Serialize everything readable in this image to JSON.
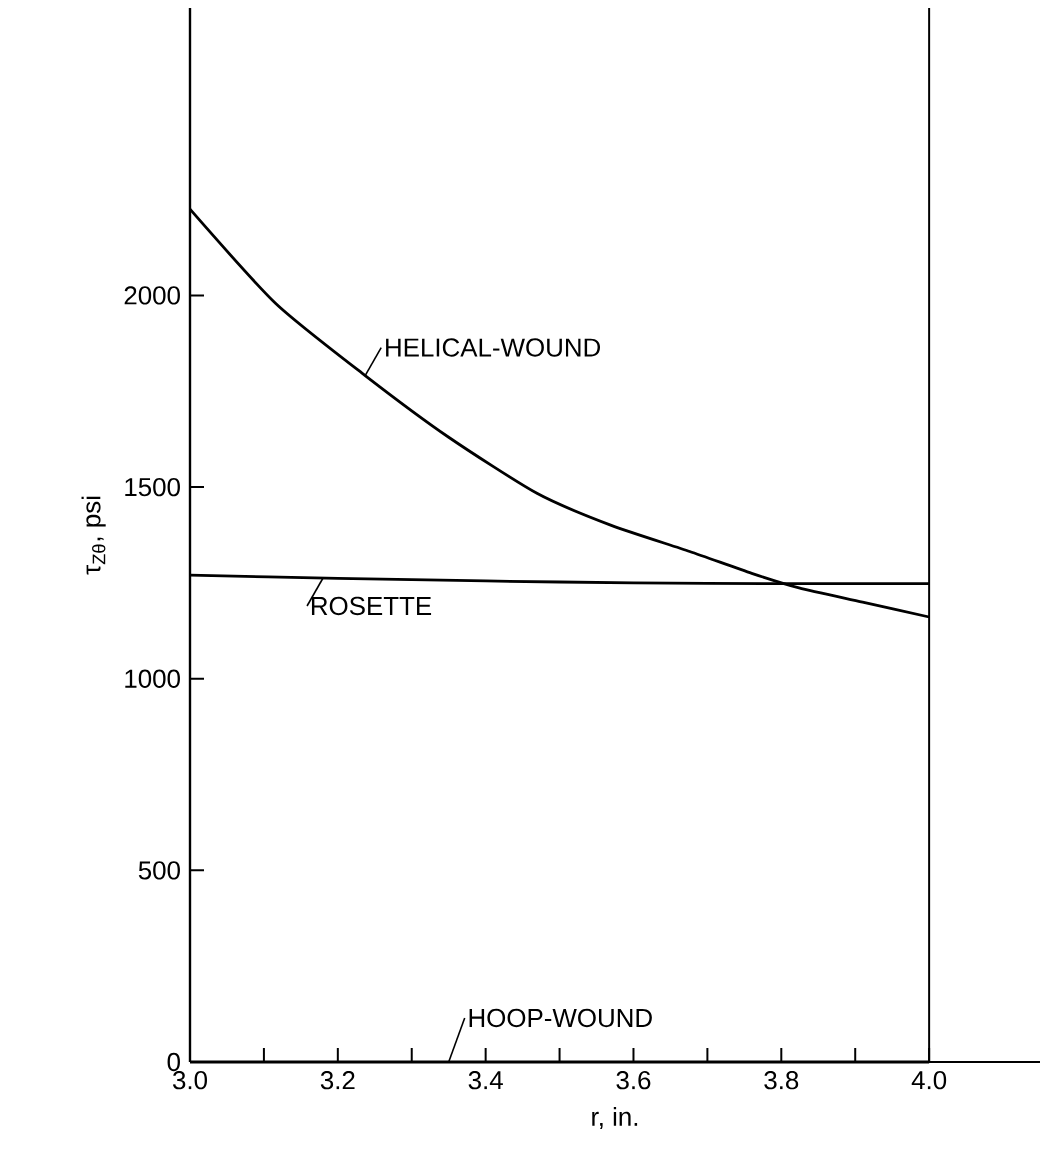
{
  "chart_data": {
    "type": "line",
    "xlabel": "r, in.",
    "ylabel": "τ$_{Zθ}$, psi",
    "xlim": [
      3.0,
      4.15
    ],
    "ylim": [
      0,
      2750
    ],
    "xticks": [
      {
        "value": 3.0,
        "label": "3.0"
      },
      {
        "value": 3.1,
        "label": null
      },
      {
        "value": 3.2,
        "label": "3.2"
      },
      {
        "value": 3.3,
        "label": null
      },
      {
        "value": 3.4,
        "label": "3.4"
      },
      {
        "value": 3.5,
        "label": null
      },
      {
        "value": 3.6,
        "label": "3.6"
      },
      {
        "value": 3.7,
        "label": null
      },
      {
        "value": 3.8,
        "label": "3.8"
      },
      {
        "value": 3.9,
        "label": null
      },
      {
        "value": 4.0,
        "label": "4.0"
      }
    ],
    "yticks": [
      0,
      500,
      1000,
      1500,
      2000
    ],
    "ref_lines": [
      {
        "axis": "x",
        "value": 4.0,
        "color": "#000000"
      }
    ],
    "series": [
      {
        "name": "HELICAL-WOUND",
        "color": "#000000",
        "x": [
          3.0,
          3.116,
          3.237,
          3.35,
          3.47,
          3.57,
          3.676,
          3.76,
          3.824,
          3.91,
          4.0
        ],
        "values": [
          2225,
          1979,
          1791,
          1630,
          1483,
          1400,
          1332,
          1275,
          1237,
          1200,
          1161
        ]
      },
      {
        "name": "ROSETTE",
        "color": "#000000",
        "x": [
          3.0,
          3.2,
          3.4,
          3.6,
          3.8,
          4.0
        ],
        "values": [
          1270,
          1262,
          1255,
          1250,
          1248,
          1248
        ]
      },
      {
        "name": "HOOP-WOUND",
        "color": "#000000",
        "x": [
          3.0,
          4.0
        ],
        "values": [
          0,
          0
        ]
      }
    ]
  }
}
